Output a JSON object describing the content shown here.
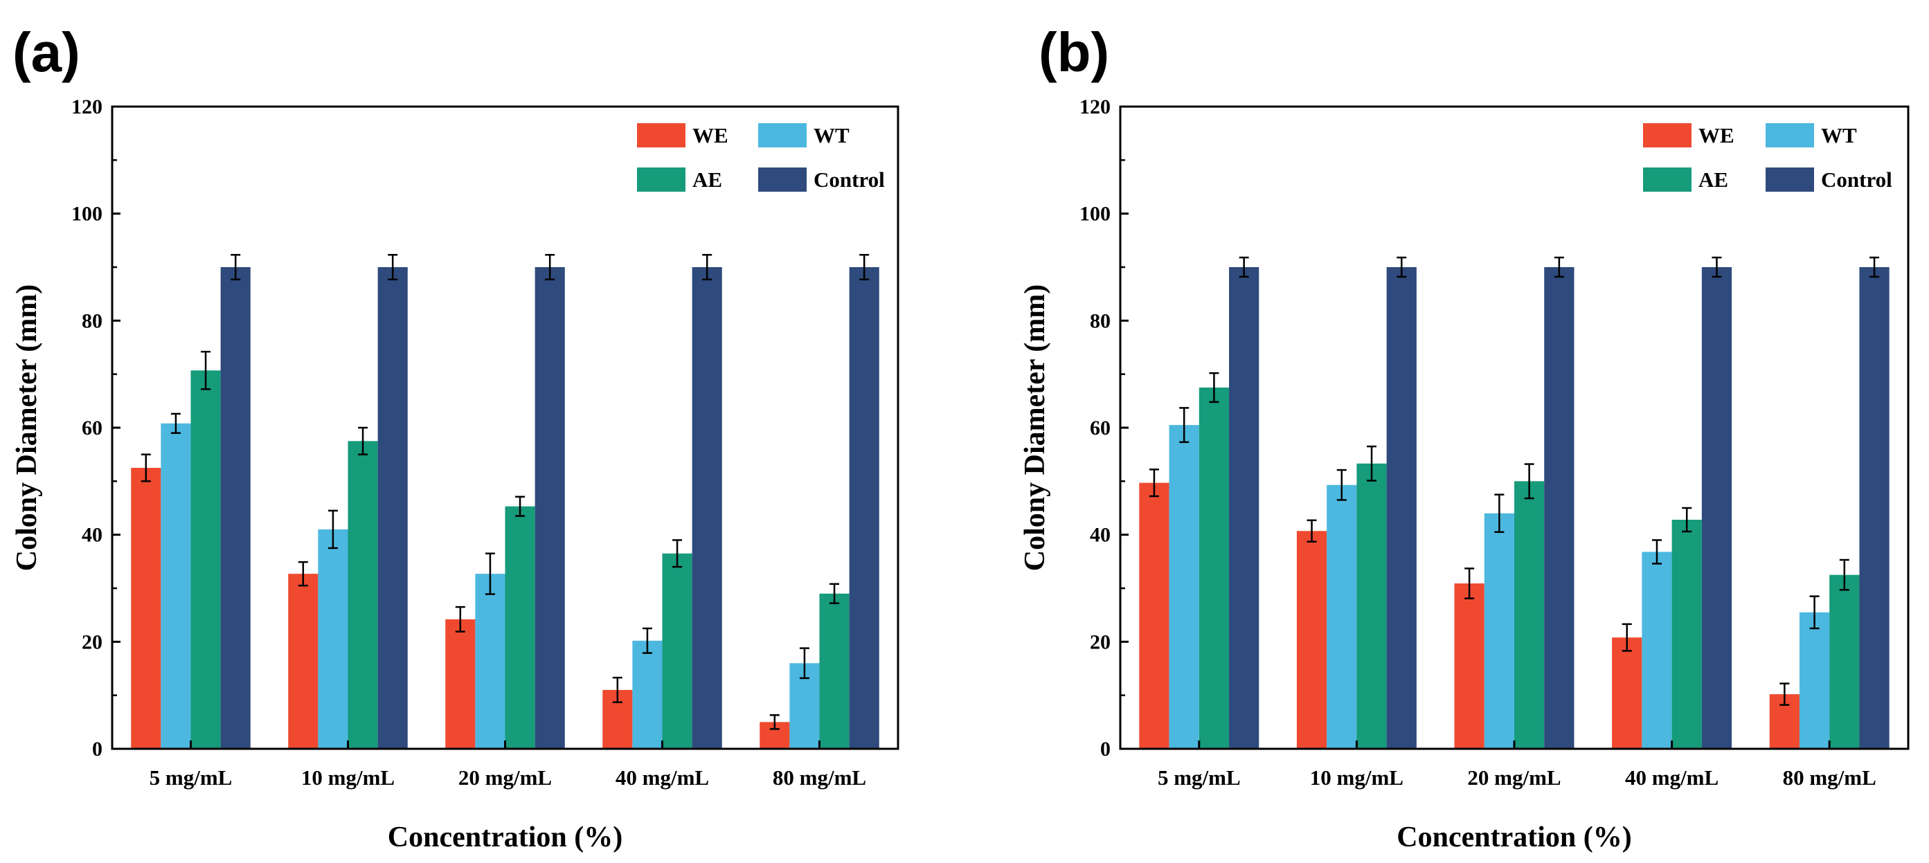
{
  "chart_data": [
    {
      "panel": "(a)",
      "type": "bar",
      "xlabel": "Concentration (%)",
      "ylabel": "Colony Diameter (mm)",
      "ylim": [
        0,
        120
      ],
      "yticks": [
        0,
        20,
        40,
        60,
        80,
        100,
        120
      ],
      "legend_position": "top-right",
      "categories": [
        "5 mg/mL",
        "10 mg/mL",
        "20 mg/mL",
        "40 mg/mL",
        "80 mg/mL"
      ],
      "series": [
        {
          "name": "WE",
          "color": "#EF4A30",
          "values": [
            52.5,
            32.7,
            24.2,
            11.0,
            5.0
          ],
          "errors": [
            2.5,
            2.2,
            2.3,
            2.3,
            1.3
          ]
        },
        {
          "name": "WT",
          "color": "#4CB8E0",
          "values": [
            60.8,
            41.0,
            32.7,
            20.2,
            16.0
          ],
          "errors": [
            1.8,
            3.5,
            3.8,
            2.3,
            2.8
          ]
        },
        {
          "name": "AE",
          "color": "#169B7B",
          "values": [
            70.7,
            57.5,
            45.3,
            36.5,
            29.0
          ],
          "errors": [
            3.5,
            2.5,
            1.8,
            2.5,
            1.8
          ]
        },
        {
          "name": "Control",
          "color": "#2F4A7C",
          "values": [
            90,
            90,
            90,
            90,
            90
          ],
          "errors": [
            2.3,
            2.3,
            2.3,
            2.3,
            2.3
          ]
        }
      ]
    },
    {
      "panel": "(b)",
      "type": "bar",
      "xlabel": "Concentration (%)",
      "ylabel": "Colony Diameter (mm)",
      "ylim": [
        0,
        120
      ],
      "yticks": [
        0,
        20,
        40,
        60,
        80,
        100,
        120
      ],
      "legend_position": "top-right",
      "categories": [
        "5 mg/mL",
        "10 mg/mL",
        "20 mg/mL",
        "40 mg/mL",
        "80 mg/mL"
      ],
      "series": [
        {
          "name": "WE",
          "color": "#EF4A30",
          "values": [
            49.7,
            40.7,
            30.9,
            20.8,
            10.2
          ],
          "errors": [
            2.5,
            2.0,
            2.8,
            2.5,
            2.0
          ]
        },
        {
          "name": "WT",
          "color": "#4CB8E0",
          "values": [
            60.5,
            49.3,
            44.0,
            36.8,
            25.5
          ],
          "errors": [
            3.2,
            2.8,
            3.5,
            2.2,
            3.0
          ]
        },
        {
          "name": "AE",
          "color": "#169B7B",
          "values": [
            67.5,
            53.3,
            50.0,
            42.8,
            32.5
          ],
          "errors": [
            2.7,
            3.2,
            3.2,
            2.2,
            2.8
          ]
        },
        {
          "name": "Control",
          "color": "#2F4A7C",
          "values": [
            90,
            90,
            90,
            90,
            90
          ],
          "errors": [
            1.8,
            1.8,
            1.8,
            1.8,
            1.8
          ]
        }
      ]
    }
  ]
}
